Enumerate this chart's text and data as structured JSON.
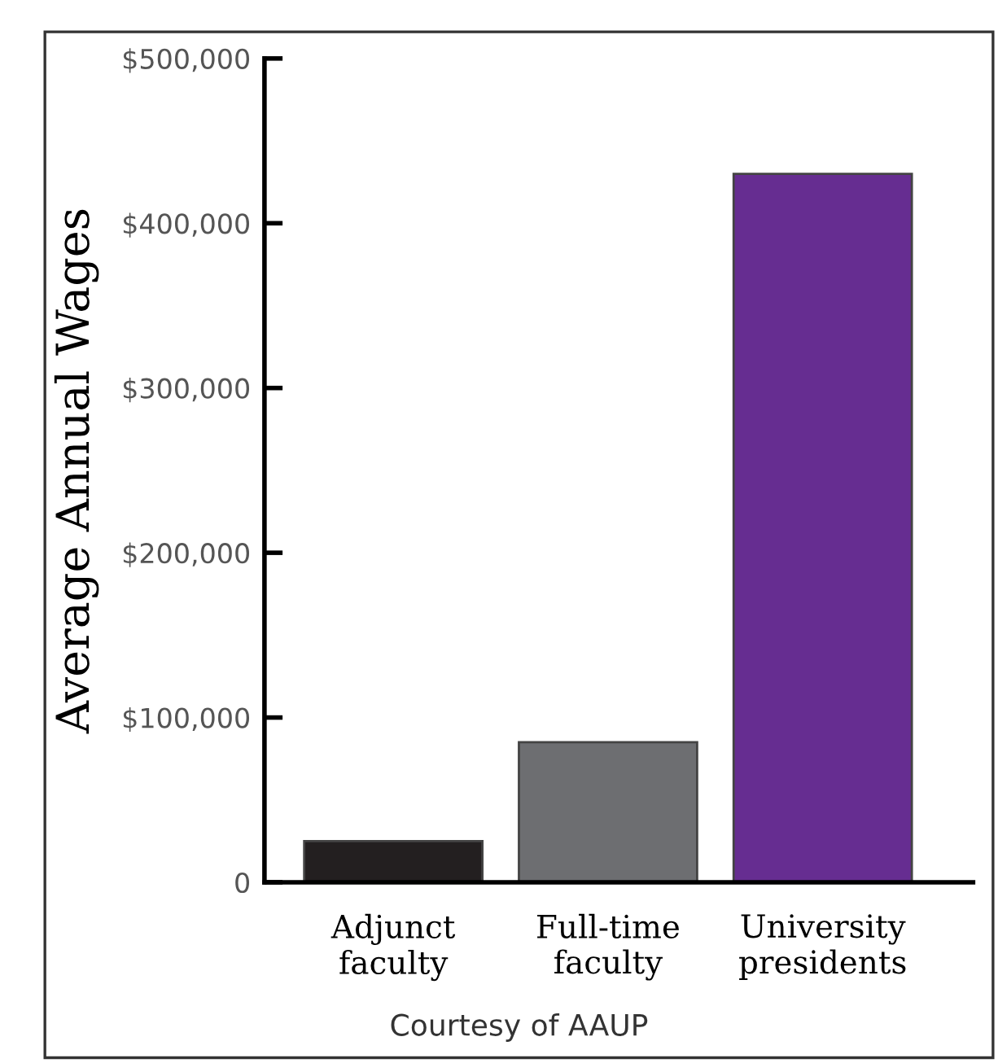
{
  "chart_data": {
    "type": "bar",
    "ylabel": "Average Annual Wages",
    "categories": [
      "Adjunct\nfaculty",
      "Full-time\nfaculty",
      "University\npresidents"
    ],
    "values": [
      25000,
      85000,
      430000
    ],
    "colors": [
      "#231f20",
      "#6d6e71",
      "#662d91"
    ],
    "ylim": [
      0,
      500000
    ],
    "yticks": [
      {
        "value": 0,
        "label": "0"
      },
      {
        "value": 100000,
        "label": "$100,000"
      },
      {
        "value": 200000,
        "label": "$200,000"
      },
      {
        "value": 300000,
        "label": "$300,000"
      },
      {
        "value": 400000,
        "label": "$400,000"
      },
      {
        "value": 500000,
        "label": "$500,000"
      }
    ],
    "grid": false,
    "annotations": [
      "Courtesy of AAUP"
    ]
  }
}
